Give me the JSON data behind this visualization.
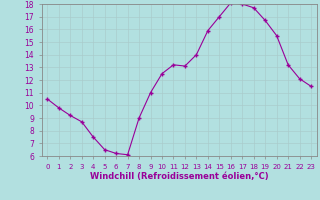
{
  "x": [
    0,
    1,
    2,
    3,
    4,
    5,
    6,
    7,
    8,
    9,
    10,
    11,
    12,
    13,
    14,
    15,
    16,
    17,
    18,
    19,
    20,
    21,
    22,
    23
  ],
  "y": [
    10.5,
    9.8,
    9.2,
    8.7,
    7.5,
    6.5,
    6.2,
    6.1,
    9.0,
    11.0,
    12.5,
    13.2,
    13.1,
    14.0,
    15.9,
    17.0,
    18.1,
    18.0,
    17.7,
    16.7,
    15.5,
    13.2,
    12.1,
    11.5
  ],
  "xlabel": "Windchill (Refroidissement éolien,°C)",
  "ylim": [
    6,
    18
  ],
  "yticks": [
    6,
    7,
    8,
    9,
    10,
    11,
    12,
    13,
    14,
    15,
    16,
    17,
    18
  ],
  "xticks": [
    0,
    1,
    2,
    3,
    4,
    5,
    6,
    7,
    8,
    9,
    10,
    11,
    12,
    13,
    14,
    15,
    16,
    17,
    18,
    19,
    20,
    21,
    22,
    23
  ],
  "line_color": "#990099",
  "marker": "+",
  "bg_color": "#b2e0e0",
  "grid_color": "#aacccc",
  "tick_color": "#990099",
  "xlabel_color": "#990099",
  "spine_color": "#888888"
}
